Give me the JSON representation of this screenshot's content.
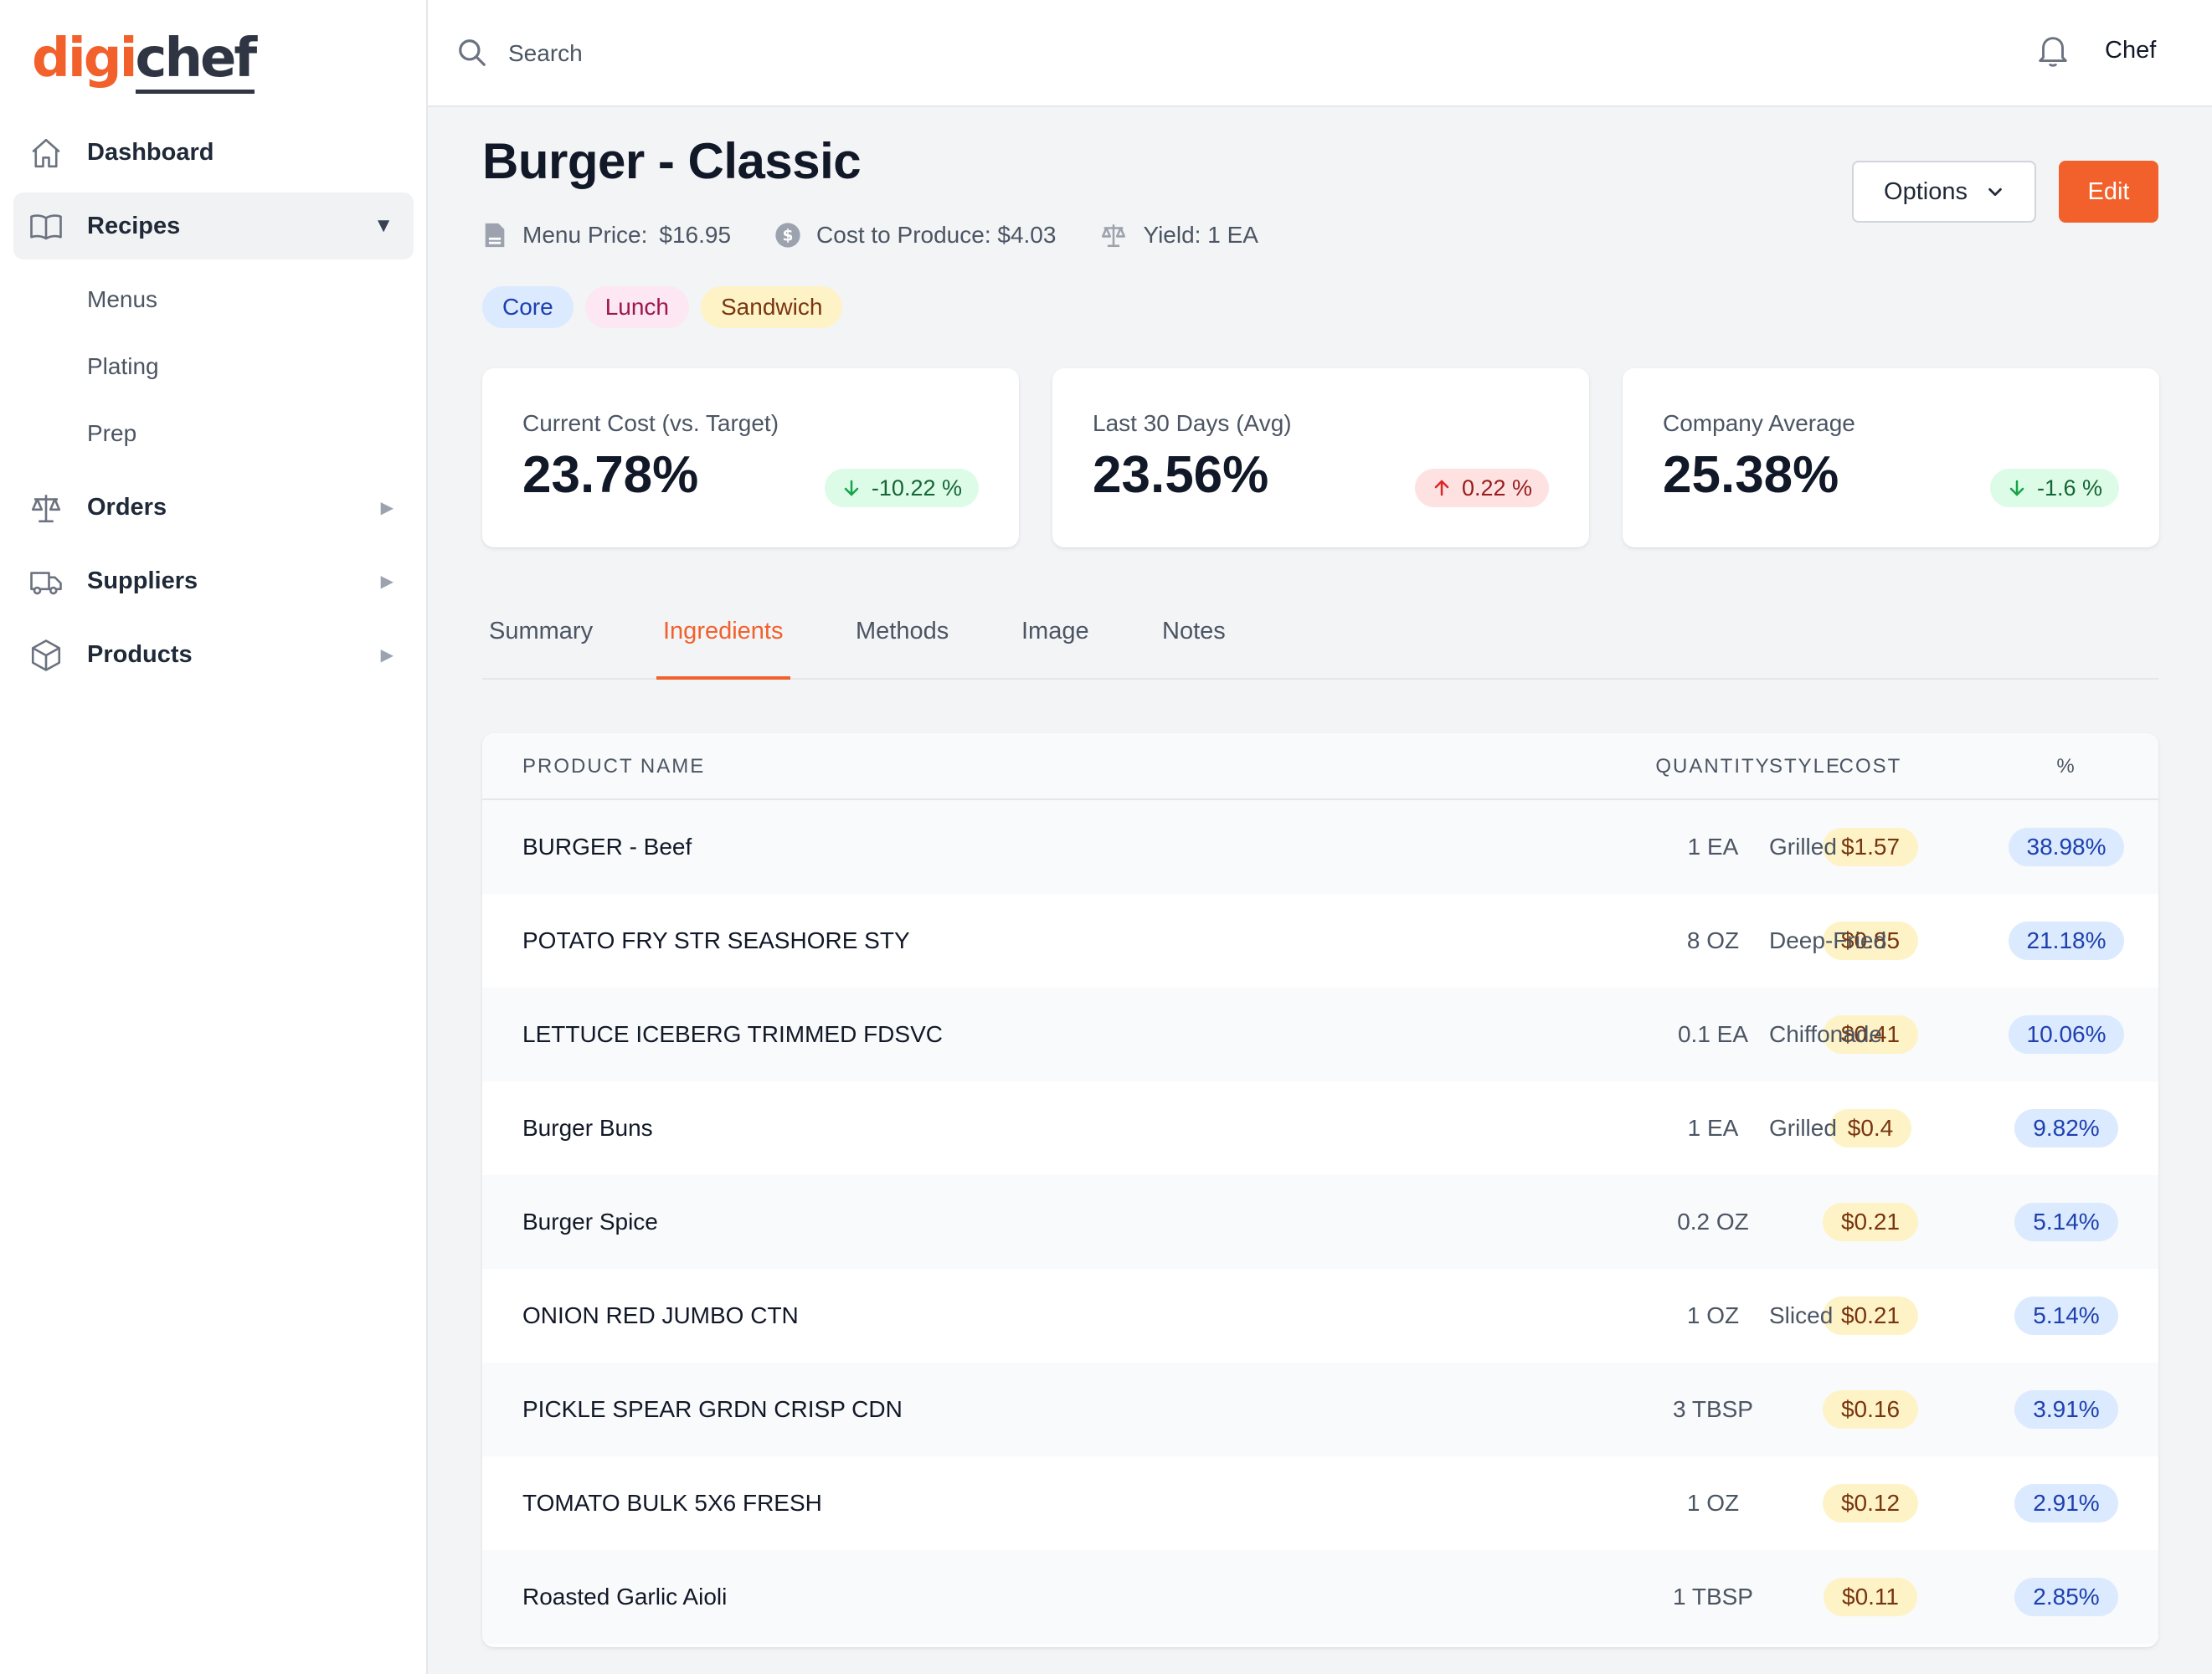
{
  "brand": {
    "logo_part1": "digi",
    "logo_part2": "chef"
  },
  "sidebar": {
    "items": [
      {
        "label": "Dashboard",
        "icon": "home-icon"
      },
      {
        "label": "Recipes",
        "icon": "book-icon",
        "expanded": true
      },
      {
        "label": "Orders",
        "icon": "scale-icon"
      },
      {
        "label": "Suppliers",
        "icon": "truck-icon"
      },
      {
        "label": "Products",
        "icon": "box-icon"
      }
    ],
    "recipes_subitems": [
      "Menus",
      "Plating",
      "Prep"
    ]
  },
  "topbar": {
    "search_placeholder": "Search",
    "user": "Chef"
  },
  "recipe": {
    "title": "Burger - Classic",
    "menu_price_label": "Menu Price:",
    "menu_price": "$16.95",
    "cost_label": "Cost to Produce: $4.03",
    "yield_label": "Yield: 1 EA",
    "tags": [
      {
        "label": "Core",
        "color": "#dbeafe"
      },
      {
        "label": "Lunch",
        "color": "#fce7f3"
      },
      {
        "label": "Sandwich",
        "color": "#fef3c7"
      }
    ]
  },
  "actions": {
    "options": "Options",
    "edit": "Edit"
  },
  "stats": [
    {
      "label": "Current Cost (vs. Target)",
      "value": "23.78%",
      "delta": "-10.22 %",
      "trend": "down"
    },
    {
      "label": "Last 30 Days (Avg)",
      "value": "23.56%",
      "delta": "0.22 %",
      "trend": "up"
    },
    {
      "label": "Company Average",
      "value": "25.38%",
      "delta": "-1.6 %",
      "trend": "down"
    }
  ],
  "tabs": [
    "Summary",
    "Ingredients",
    "Methods",
    "Image",
    "Notes"
  ],
  "active_tab": "Ingredients",
  "table": {
    "headers": [
      "PRODUCT NAME",
      "QUANTITY",
      "COST",
      "%",
      "STYLE"
    ],
    "rows": [
      {
        "name": "BURGER - Beef",
        "qty": "1 EA",
        "cost": "$1.57",
        "pct": "38.98%",
        "style": "Grilled"
      },
      {
        "name": "POTATO FRY STR SEASHORE STY",
        "qty": "8 OZ",
        "cost": "$0.85",
        "pct": "21.18%",
        "style": "Deep-Fried"
      },
      {
        "name": "LETTUCE ICEBERG TRIMMED FDSVC",
        "qty": "0.1 EA",
        "cost": "$0.41",
        "pct": "10.06%",
        "style": "Chiffonade"
      },
      {
        "name": "Burger Buns",
        "qty": "1 EA",
        "cost": "$0.4",
        "pct": "9.82%",
        "style": "Grilled"
      },
      {
        "name": "Burger Spice",
        "qty": "0.2 OZ",
        "cost": "$0.21",
        "pct": "5.14%",
        "style": ""
      },
      {
        "name": "ONION RED JUMBO CTN",
        "qty": "1 OZ",
        "cost": "$0.21",
        "pct": "5.14%",
        "style": "Sliced"
      },
      {
        "name": "PICKLE SPEAR GRDN CRISP CDN",
        "qty": "3 TBSP",
        "cost": "$0.16",
        "pct": "3.91%",
        "style": ""
      },
      {
        "name": "TOMATO BULK 5X6 FRESH",
        "qty": "1 OZ",
        "cost": "$0.12",
        "pct": "2.91%",
        "style": ""
      },
      {
        "name": "Roasted Garlic Aioli",
        "qty": "1 TBSP",
        "cost": "$0.11",
        "pct": "2.85%",
        "style": ""
      }
    ]
  },
  "colors": {
    "accent": "#f2612c",
    "positive": "#16a34a",
    "negative": "#dc2626"
  }
}
